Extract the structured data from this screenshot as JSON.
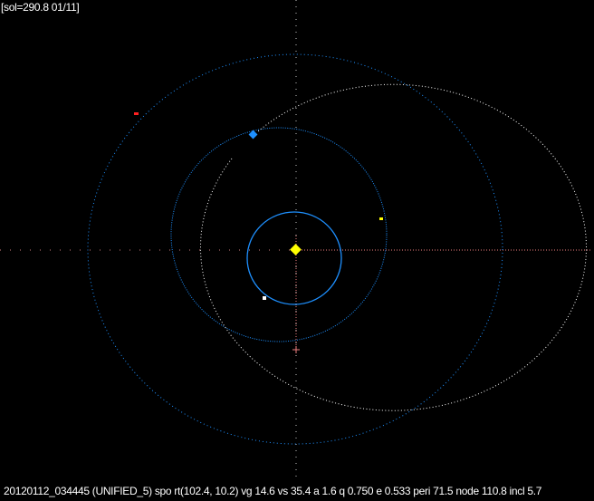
{
  "header": {
    "sol_readout": "[sol=290.8 01/11]"
  },
  "footer": {
    "orbit_info": "20120112_034445 (UNIFIED_5) spo rt(102.4, 10.2) vg 14.6 vs 35.4 a 1.6 q 0.750 e 0.533 peri 71.5 node 110.8 incl 5.7"
  },
  "colors": {
    "background": "#000000",
    "planet_orbit": "#1e90ff",
    "meteoroid_orbit": "#ffffff",
    "sun": "#ffff00",
    "axis_gray": "#c0c0c0",
    "axis_pink": "#f08080",
    "mars_marker": "#ff2020",
    "earth_marker": "#1e90ff",
    "venus_marker": "#ffff00",
    "mercury_marker": "#ffffff"
  }
}
